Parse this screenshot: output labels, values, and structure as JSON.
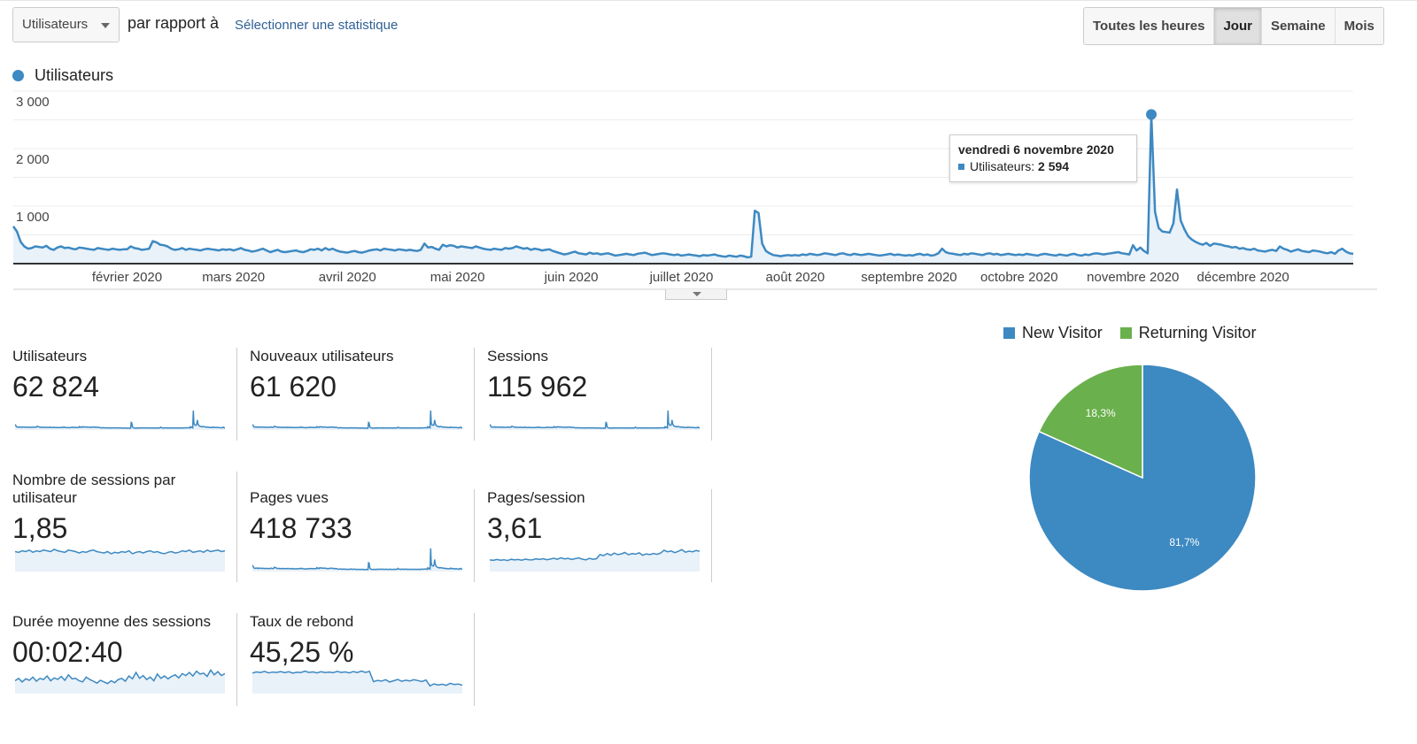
{
  "toolbar": {
    "metric_select": "Utilisateurs",
    "compare_text": "par rapport à",
    "select_stat_link": "Sélectionner une statistique",
    "granularity": [
      {
        "label": "Toutes les heures",
        "active": false
      },
      {
        "label": "Jour",
        "active": true
      },
      {
        "label": "Semaine",
        "active": false
      },
      {
        "label": "Mois",
        "active": false
      }
    ]
  },
  "tooltip": {
    "date": "vendredi 6 novembre 2020",
    "label": "Utilisateurs:",
    "value": "2 594"
  },
  "metrics": [
    {
      "label": "Utilisateurs",
      "value": "62 824"
    },
    {
      "label": "Nouveaux utilisateurs",
      "value": "61 620"
    },
    {
      "label": "Sessions",
      "value": "115 962"
    },
    {
      "label": "Nombre de sessions par utilisateur",
      "value": "1,85"
    },
    {
      "label": "Pages vues",
      "value": "418 733"
    },
    {
      "label": "Pages/session",
      "value": "3,61"
    },
    {
      "label": "Durée moyenne des sessions",
      "value": "00:02:40"
    },
    {
      "label": "Taux de rebond",
      "value": "45,25 %"
    }
  ],
  "colors": {
    "line": "#3d89c2",
    "fill": "#e9f1f9",
    "new_visitor": "#3d89c2",
    "returning_visitor": "#6ab04c"
  },
  "chart_data": [
    {
      "type": "area",
      "series_name": "Utilisateurs",
      "x_range": [
        "2020-01-01",
        "2020-12-31"
      ],
      "frequency": "daily",
      "ylim": [
        0,
        3000
      ],
      "y_ticks": [
        "1 000",
        "2 000",
        "3 000"
      ],
      "y_tick_values": [
        1000,
        2000,
        3000
      ],
      "grid": true,
      "x_ticks": [
        {
          "label": "février 2020",
          "date": "2020-02-01"
        },
        {
          "label": "mars 2020",
          "date": "2020-03-01"
        },
        {
          "label": "avril 2020",
          "date": "2020-04-01"
        },
        {
          "label": "mai 2020",
          "date": "2020-05-01"
        },
        {
          "label": "juin 2020",
          "date": "2020-06-01"
        },
        {
          "label": "juillet 2020",
          "date": "2020-07-01"
        },
        {
          "label": "août 2020",
          "date": "2020-08-01"
        },
        {
          "label": "septembre 2020",
          "date": "2020-09-01"
        },
        {
          "label": "octobre 2020",
          "date": "2020-10-01"
        },
        {
          "label": "novembre 2020",
          "date": "2020-11-01"
        },
        {
          "label": "décembre 2020",
          "date": "2020-12-01"
        }
      ],
      "highlight": {
        "date": "2020-11-06",
        "value": 2594
      },
      "values": [
        650,
        560,
        380,
        300,
        260,
        270,
        300,
        290,
        280,
        310,
        260,
        240,
        280,
        300,
        270,
        280,
        260,
        250,
        280,
        270,
        260,
        250,
        240,
        270,
        260,
        250,
        240,
        260,
        250,
        240,
        250,
        250,
        300,
        270,
        260,
        240,
        250,
        260,
        390,
        370,
        330,
        320,
        300,
        260,
        240,
        250,
        270,
        240,
        260,
        250,
        240,
        230,
        250,
        260,
        250,
        240,
        230,
        250,
        240,
        250,
        230,
        250,
        270,
        240,
        230,
        210,
        220,
        240,
        260,
        230,
        200,
        220,
        240,
        210,
        200,
        210,
        220,
        230,
        210,
        200,
        220,
        250,
        240,
        260,
        230,
        270,
        240,
        260,
        230,
        210,
        200,
        190,
        210,
        220,
        200,
        190,
        210,
        230,
        240,
        250,
        230,
        260,
        250,
        240,
        230,
        250,
        240,
        230,
        240,
        230,
        220,
        240,
        350,
        280,
        290,
        260,
        240,
        330,
        300,
        320,
        310,
        280,
        300,
        290,
        280,
        270,
        300,
        280,
        260,
        250,
        240,
        260,
        250,
        240,
        270,
        260,
        270,
        300,
        280,
        260,
        270,
        240,
        260,
        250,
        230,
        240,
        250,
        220,
        200,
        180,
        160,
        170,
        190,
        210,
        180,
        170,
        160,
        190,
        170,
        180,
        160,
        170,
        180,
        160,
        140,
        150,
        160,
        170,
        160,
        150,
        170,
        180,
        190,
        170,
        150,
        160,
        170,
        180,
        170,
        160,
        150,
        160,
        140,
        150,
        160,
        150,
        140,
        130,
        150,
        140,
        150,
        160,
        140,
        130,
        120,
        140,
        130,
        120,
        140,
        130,
        110,
        120,
        920,
        880,
        350,
        220,
        180,
        150,
        140,
        130,
        140,
        150,
        140,
        150,
        140,
        160,
        150,
        170,
        160,
        150,
        160,
        180,
        170,
        160,
        150,
        170,
        180,
        160,
        150,
        170,
        160,
        150,
        160,
        170,
        160,
        150,
        140,
        150,
        160,
        170,
        150,
        160,
        150,
        140,
        150,
        140,
        160,
        170,
        150,
        160,
        140,
        150,
        180,
        260,
        200,
        180,
        170,
        160,
        150,
        170,
        160,
        180,
        170,
        160,
        150,
        170,
        180,
        160,
        170,
        150,
        160,
        170,
        160,
        150,
        160,
        150,
        170,
        160,
        150,
        140,
        160,
        170,
        160,
        150,
        140,
        160,
        150,
        140,
        160,
        170,
        150,
        140,
        160,
        150,
        170,
        180,
        170,
        160,
        170,
        180,
        190,
        200,
        180,
        170,
        160,
        320,
        230,
        280,
        220,
        180,
        2594,
        900,
        620,
        560,
        550,
        540,
        700,
        1290,
        750,
        600,
        480,
        420,
        380,
        350,
        330,
        360,
        310,
        350,
        340,
        330,
        310,
        300,
        280,
        290,
        260,
        270,
        250,
        240,
        260,
        230,
        220,
        210,
        230,
        240,
        220,
        300,
        260,
        240,
        210,
        230,
        250,
        220,
        210,
        200,
        230,
        220,
        210,
        190,
        180,
        200,
        170,
        230,
        260,
        210,
        180,
        170
      ]
    },
    {
      "type": "pie",
      "legend_position": "top",
      "slices": [
        {
          "name": "New Visitor",
          "value": 81.7,
          "label": "81,7%"
        },
        {
          "name": "Returning Visitor",
          "value": 18.3,
          "label": "18,3%"
        }
      ]
    }
  ],
  "sparklines": {
    "sessions_per_user": {
      "ylim": [
        1.6,
        1.95
      ],
      "values": [
        1.86,
        1.85,
        1.87,
        1.86,
        1.88,
        1.85,
        1.87,
        1.86,
        1.88,
        1.87,
        1.86,
        1.89,
        1.87,
        1.86,
        1.85,
        1.88,
        1.87,
        1.86,
        1.84,
        1.86,
        1.85,
        1.87,
        1.88,
        1.86,
        1.85,
        1.84,
        1.86,
        1.83,
        1.85,
        1.84,
        1.86,
        1.85,
        1.87,
        1.83,
        1.85,
        1.86,
        1.84,
        1.86,
        1.87,
        1.85,
        1.86,
        1.84,
        1.83,
        1.85,
        1.86,
        1.84,
        1.85,
        1.87,
        1.86,
        1.88,
        1.85,
        1.86,
        1.87,
        1.85,
        1.88,
        1.86,
        1.87,
        1.88,
        1.86,
        1.87
      ]
    },
    "pages_per_session": {
      "ylim": [
        2.8,
        4.0
      ],
      "values": [
        3.3,
        3.28,
        3.32,
        3.29,
        3.31,
        3.27,
        3.33,
        3.3,
        3.32,
        3.29,
        3.34,
        3.31,
        3.3,
        3.35,
        3.32,
        3.36,
        3.31,
        3.34,
        3.38,
        3.33,
        3.4,
        3.35,
        3.37,
        3.32,
        3.36,
        3.39,
        3.34,
        3.3,
        3.37,
        3.33,
        3.36,
        3.55,
        3.5,
        3.6,
        3.52,
        3.62,
        3.55,
        3.58,
        3.65,
        3.54,
        3.6,
        3.57,
        3.63,
        3.52,
        3.58,
        3.55,
        3.6,
        3.56,
        3.62,
        3.75,
        3.68,
        3.72,
        3.64,
        3.7,
        3.78,
        3.66,
        3.71,
        3.68,
        3.74,
        3.7
      ]
    },
    "avg_session_duration": {
      "ylim": [
        100,
        200
      ],
      "values": [
        150,
        160,
        145,
        158,
        152,
        165,
        148,
        160,
        155,
        170,
        150,
        162,
        156,
        168,
        152,
        175,
        158,
        160,
        150,
        145,
        165,
        155,
        148,
        140,
        152,
        145,
        138,
        150,
        142,
        155,
        160,
        148,
        170,
        158,
        185,
        160,
        172,
        155,
        165,
        150,
        178,
        160,
        170,
        158,
        168,
        175,
        162,
        180,
        172,
        185,
        170,
        190,
        178,
        182,
        168,
        195,
        175,
        188,
        172,
        180
      ]
    },
    "bounce_rate": {
      "ylim": [
        38,
        52
      ],
      "values": [
        49.5,
        50.2,
        49.8,
        50.5,
        49.6,
        50.1,
        49.9,
        50.4,
        49.7,
        50.3,
        49.5,
        50.0,
        49.8,
        50.6,
        49.9,
        50.2,
        49.6,
        50.3,
        49.8,
        50.1,
        49.7,
        50.5,
        49.9,
        50.2,
        49.6,
        50.4,
        49.8,
        50.7,
        49.9,
        50.5,
        44.5,
        45.2,
        44.8,
        45.6,
        44.3,
        45.0,
        45.8,
        44.7,
        45.3,
        44.9,
        45.6,
        45.1,
        44.6,
        45.4,
        42.0,
        43.2,
        42.5,
        43.0,
        42.3,
        43.5,
        42.8,
        43.1,
        42.4
      ]
    }
  }
}
